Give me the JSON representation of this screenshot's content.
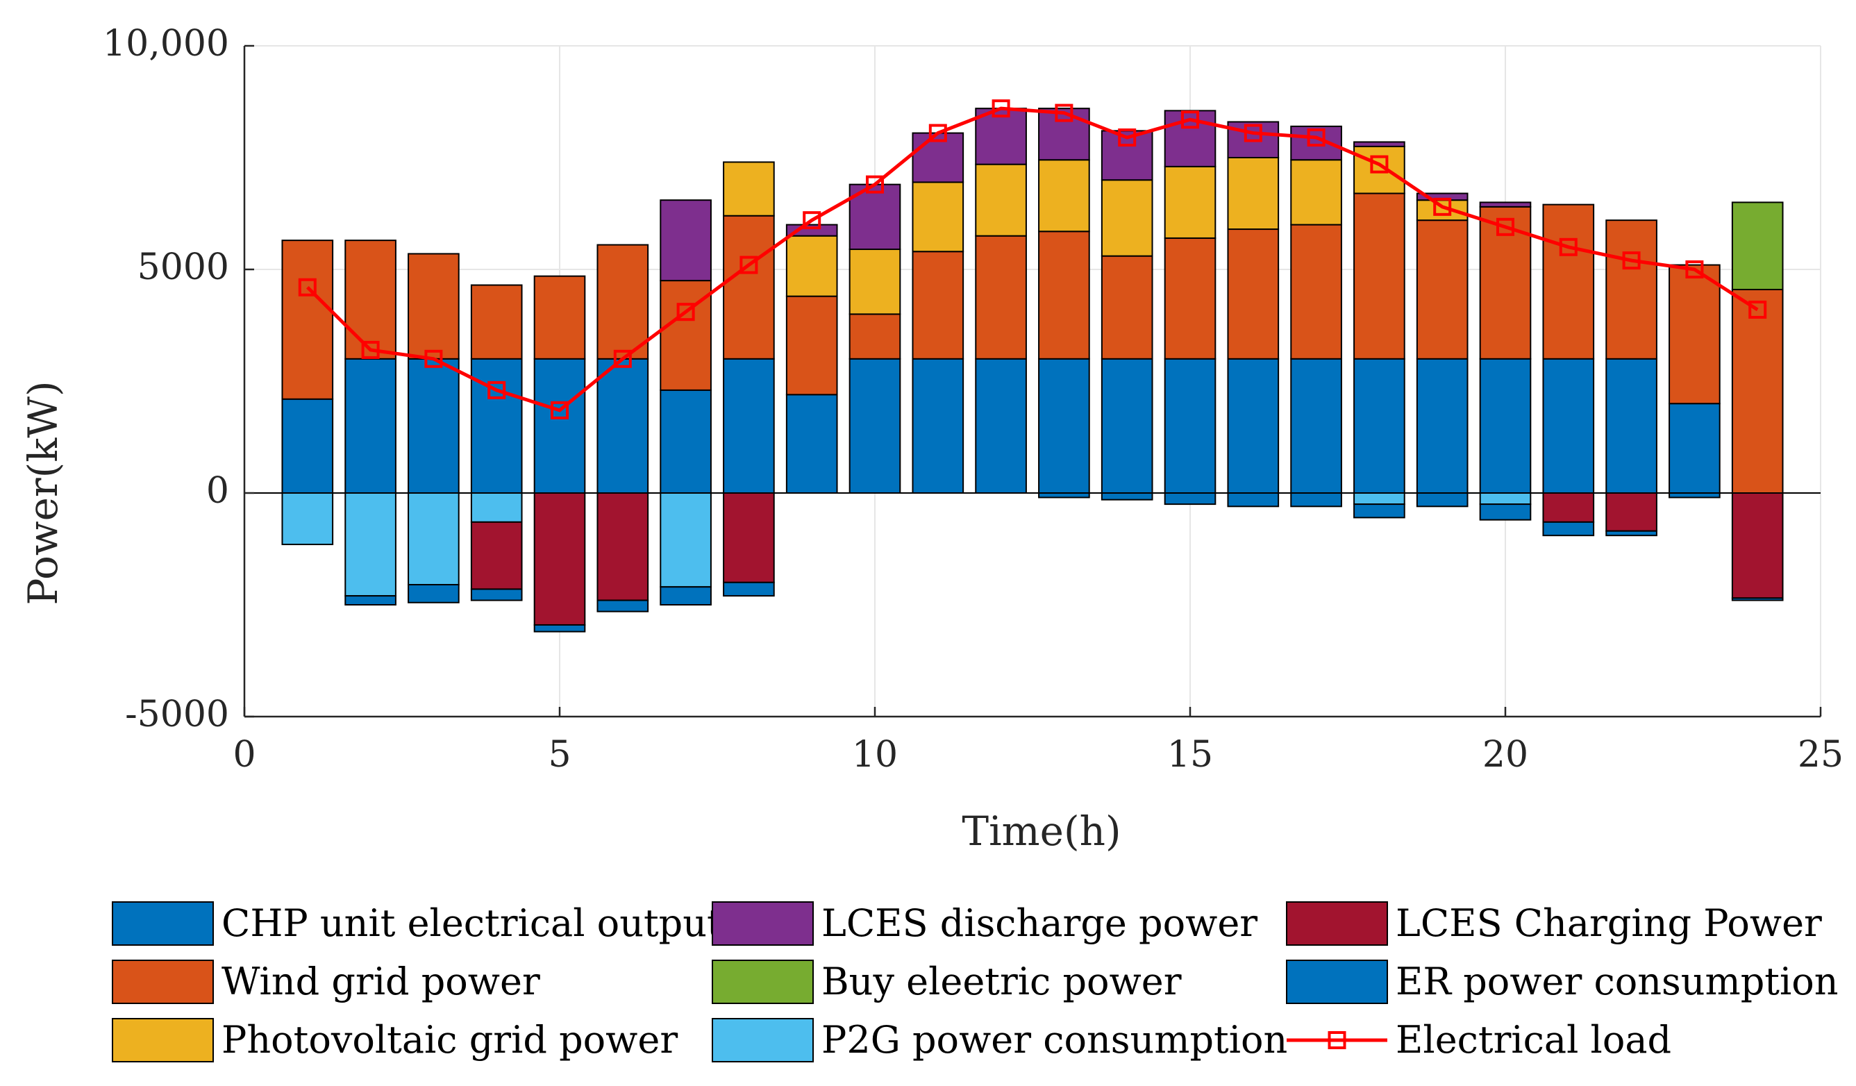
{
  "chart_data": {
    "type": "bar",
    "stacked": true,
    "xlabel": "Time(h)",
    "ylabel": "Power(kW)",
    "xlim": [
      0,
      25
    ],
    "ylim": [
      -5000,
      10000
    ],
    "xticks": [
      0,
      5,
      10,
      15,
      20,
      25
    ],
    "xtick_labels": [
      "0",
      "5",
      "10",
      "15",
      "20",
      "25"
    ],
    "yticks": [
      -5000,
      0,
      5000,
      10000
    ],
    "ytick_labels": [
      "-5000",
      "0",
      "5000",
      "10,000"
    ],
    "grid": true,
    "hours": [
      1,
      2,
      3,
      4,
      5,
      6,
      7,
      8,
      9,
      10,
      11,
      12,
      13,
      14,
      15,
      16,
      17,
      18,
      19,
      20,
      21,
      22,
      23,
      24
    ],
    "series": [
      {
        "name": "CHP unit electrical output",
        "color": "#0072BD",
        "side": "positive",
        "values": [
          2100,
          3000,
          3000,
          3000,
          3000,
          3000,
          2300,
          3000,
          2200,
          3000,
          3000,
          3000,
          3000,
          3000,
          3000,
          3000,
          3000,
          3000,
          3000,
          3000,
          3000,
          3000,
          2000,
          0
        ]
      },
      {
        "name": "Wind grid power",
        "color": "#D95319",
        "side": "positive",
        "values": [
          3550,
          2650,
          2350,
          1650,
          1850,
          2550,
          2450,
          3200,
          2200,
          1000,
          2400,
          2750,
          2850,
          2300,
          2700,
          2900,
          3000,
          3700,
          3100,
          3400,
          3450,
          3100,
          3100,
          4550
        ]
      },
      {
        "name": "Photovoltaic grid power",
        "color": "#EDB120",
        "side": "positive",
        "values": [
          0,
          0,
          0,
          0,
          0,
          0,
          0,
          1200,
          1350,
          1450,
          1550,
          1600,
          1600,
          1700,
          1600,
          1600,
          1450,
          1050,
          450,
          0,
          0,
          0,
          0,
          0
        ]
      },
      {
        "name": "LCES discharge power",
        "color": "#7E2F8E",
        "side": "positive",
        "values": [
          0,
          0,
          0,
          0,
          0,
          0,
          1800,
          0,
          250,
          1450,
          1100,
          1250,
          1150,
          1100,
          1250,
          800,
          750,
          100,
          150,
          100,
          0,
          0,
          0,
          0
        ]
      },
      {
        "name": "Buy eleetric power",
        "color": "#77AC30",
        "side": "positive",
        "values": [
          0,
          0,
          0,
          0,
          0,
          0,
          0,
          0,
          0,
          0,
          0,
          0,
          0,
          0,
          0,
          0,
          0,
          0,
          0,
          0,
          0,
          0,
          0,
          1950
        ]
      },
      {
        "name": "P2G power consumption",
        "color": "#4DBEEE",
        "side": "negative",
        "values": [
          -1150,
          -2300,
          -2050,
          -650,
          0,
          0,
          -2100,
          0,
          0,
          0,
          0,
          0,
          0,
          0,
          0,
          0,
          0,
          -250,
          0,
          -250,
          0,
          0,
          0,
          0
        ]
      },
      {
        "name": "LCES Charging Power",
        "color": "#A2142F",
        "side": "negative",
        "values": [
          0,
          0,
          0,
          -1500,
          -2950,
          -2400,
          0,
          -2000,
          0,
          0,
          0,
          0,
          0,
          0,
          0,
          0,
          0,
          0,
          0,
          0,
          -650,
          -850,
          0,
          -2350
        ]
      },
      {
        "name": "ER power consumption",
        "color": "#0072BD",
        "side": "negative",
        "values": [
          0,
          -200,
          -400,
          -250,
          -150,
          -250,
          -400,
          -300,
          0,
          0,
          0,
          0,
          -100,
          -150,
          -250,
          -300,
          -300,
          -300,
          -300,
          -350,
          -300,
          -100,
          -100,
          -50
        ]
      },
      {
        "name": "Electrical load",
        "color": "#FF0000",
        "type": "line",
        "marker": "square",
        "values": [
          4600,
          3200,
          3000,
          2300,
          1850,
          3000,
          4050,
          5100,
          6100,
          6900,
          8050,
          8600,
          8500,
          7950,
          8350,
          8050,
          7950,
          7350,
          6400,
          5950,
          5500,
          5200,
          5000,
          4100
        ]
      }
    ],
    "legend": {
      "placement": "bottom",
      "columns": 3,
      "entries": [
        "CHP unit electrical output",
        "LCES discharge power",
        "LCES Charging Power",
        "Wind grid power",
        "Buy eleetric power",
        "ER power consumption",
        "Photovoltaic grid power",
        "P2G power consumption",
        "Electrical load"
      ]
    }
  }
}
